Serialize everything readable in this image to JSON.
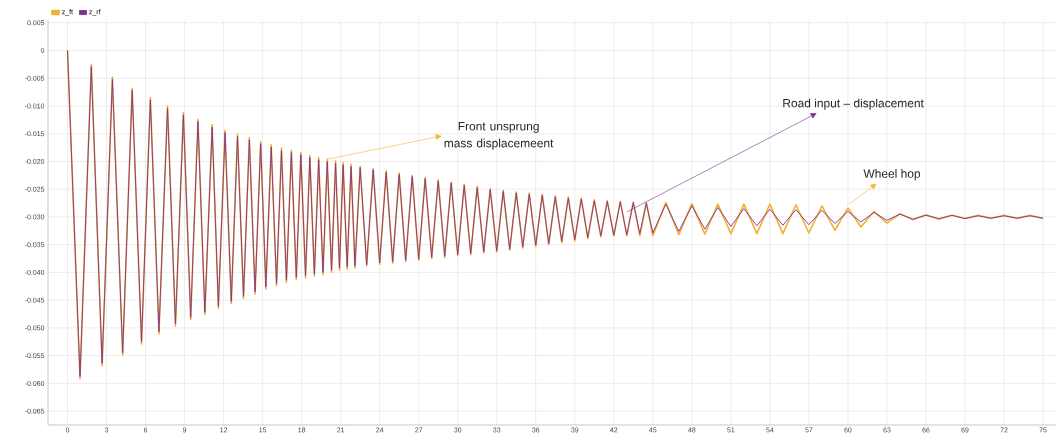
{
  "chart_data": {
    "type": "line",
    "x": [
      0,
      0.96,
      1.83,
      2.66,
      3.45,
      4.24,
      4.97,
      5.69,
      6.37,
      7.03,
      7.69,
      8.3,
      8.91,
      9.47,
      10.03,
      10.56,
      11.12,
      11.6,
      12.11,
      12.59,
      13.07,
      13.53,
      13.98,
      14.42,
      14.85,
      15.25,
      15.66,
      16.07,
      16.45,
      16.83,
      17.21,
      17.59,
      17.94,
      18.3,
      18.63,
      18.98,
      19.31,
      19.64,
      19.97,
      20.3,
      20.61,
      20.91,
      21.19,
      21.5,
      21.8,
      22.1,
      22.5,
      23,
      23.5,
      24,
      24.5,
      25,
      25.5,
      26,
      26.5,
      27,
      27.5,
      28,
      28.5,
      29,
      29.5,
      30,
      30.5,
      31,
      31.5,
      32,
      32.5,
      33,
      33.5,
      34,
      34.5,
      35,
      35.5,
      36,
      36.5,
      37,
      37.5,
      38,
      38.5,
      39,
      39.5,
      40,
      40.5,
      41,
      41.5,
      42,
      42.5,
      43,
      43.5,
      44,
      44.5,
      45,
      46,
      47,
      48,
      49,
      50,
      51,
      52,
      53,
      54,
      55,
      56,
      57,
      58,
      59,
      60,
      61,
      62,
      63,
      64,
      65,
      66,
      67,
      68,
      69,
      70,
      71,
      72,
      73,
      74,
      75
    ],
    "series": [
      {
        "name": "z_ft",
        "color": "#f2b134",
        "values": [
          0,
          -0.0592,
          -0.0025,
          -0.0568,
          -0.0048,
          -0.0549,
          -0.0068,
          -0.0529,
          -0.0085,
          -0.0511,
          -0.01,
          -0.0497,
          -0.0112,
          -0.0485,
          -0.0124,
          -0.0476,
          -0.0134,
          -0.0465,
          -0.0144,
          -0.0456,
          -0.0151,
          -0.0447,
          -0.0157,
          -0.0439,
          -0.0164,
          -0.043,
          -0.017,
          -0.0424,
          -0.0176,
          -0.0418,
          -0.018,
          -0.0413,
          -0.0184,
          -0.041,
          -0.0189,
          -0.0407,
          -0.0193,
          -0.0404,
          -0.0196,
          -0.04,
          -0.0199,
          -0.0396,
          -0.0202,
          -0.0394,
          -0.0205,
          -0.0392,
          -0.0209,
          -0.0388,
          -0.0213,
          -0.0385,
          -0.0217,
          -0.0383,
          -0.0221,
          -0.038,
          -0.0225,
          -0.0378,
          -0.0229,
          -0.0375,
          -0.0233,
          -0.0373,
          -0.0237,
          -0.037,
          -0.0241,
          -0.0368,
          -0.0245,
          -0.0365,
          -0.0249,
          -0.0363,
          -0.0252,
          -0.036,
          -0.0255,
          -0.0356,
          -0.0257,
          -0.0353,
          -0.0259,
          -0.035,
          -0.0262,
          -0.0346,
          -0.0264,
          -0.0343,
          -0.0266,
          -0.0339,
          -0.0269,
          -0.0336,
          -0.0271,
          -0.0334,
          -0.0272,
          -0.0334,
          -0.0273,
          -0.0334,
          -0.0274,
          -0.0334,
          -0.0274,
          -0.0332,
          -0.0276,
          -0.0331,
          -0.0277,
          -0.033,
          -0.0277,
          -0.033,
          -0.0277,
          -0.033,
          -0.0278,
          -0.0329,
          -0.028,
          -0.0324,
          -0.0284,
          -0.0318,
          -0.029,
          -0.0311,
          -0.0294,
          -0.0305,
          -0.0296,
          -0.0304,
          -0.0297,
          -0.0303,
          -0.0297,
          -0.0303,
          -0.0297,
          -0.0303,
          -0.0297,
          -0.0303
        ]
      },
      {
        "name": "z_rf",
        "color": "#7b3294",
        "values": [
          0,
          -0.0588,
          -0.0029,
          -0.0564,
          -0.0052,
          -0.0545,
          -0.0072,
          -0.0525,
          -0.0089,
          -0.0507,
          -0.0104,
          -0.0493,
          -0.0116,
          -0.0481,
          -0.0128,
          -0.0472,
          -0.0138,
          -0.0461,
          -0.0148,
          -0.0452,
          -0.0155,
          -0.0443,
          -0.0161,
          -0.0435,
          -0.0168,
          -0.0426,
          -0.0174,
          -0.042,
          -0.018,
          -0.0414,
          -0.0184,
          -0.0409,
          -0.0188,
          -0.0406,
          -0.0193,
          -0.0403,
          -0.0197,
          -0.04,
          -0.02,
          -0.0396,
          -0.0203,
          -0.0392,
          -0.0206,
          -0.039,
          -0.0209,
          -0.0388,
          -0.0211,
          -0.0386,
          -0.0215,
          -0.0383,
          -0.0219,
          -0.0381,
          -0.0223,
          -0.0378,
          -0.0227,
          -0.0376,
          -0.0231,
          -0.0373,
          -0.0235,
          -0.0371,
          -0.0239,
          -0.0368,
          -0.0243,
          -0.0366,
          -0.0247,
          -0.0363,
          -0.0251,
          -0.0361,
          -0.0254,
          -0.0358,
          -0.0257,
          -0.0354,
          -0.0259,
          -0.0351,
          -0.0261,
          -0.0348,
          -0.0264,
          -0.0344,
          -0.0266,
          -0.0341,
          -0.0268,
          -0.0337,
          -0.0271,
          -0.0334,
          -0.0272,
          -0.0333,
          -0.0273,
          -0.0332,
          -0.0274,
          -0.033,
          -0.0275,
          -0.0329,
          -0.0277,
          -0.0326,
          -0.028,
          -0.0322,
          -0.0283,
          -0.0317,
          -0.0285,
          -0.0316,
          -0.0286,
          -0.0315,
          -0.0287,
          -0.0314,
          -0.0288,
          -0.0312,
          -0.029,
          -0.0309,
          -0.0292,
          -0.0306,
          -0.0295,
          -0.0304,
          -0.0297,
          -0.0303,
          -0.0297,
          -0.0303,
          -0.0298,
          -0.0302,
          -0.0298,
          -0.0302,
          -0.0298,
          -0.0302
        ]
      }
    ],
    "xlim": [
      -1.5,
      76
    ],
    "ylim": [
      -0.0675,
      0.0055
    ],
    "xticks": [
      0,
      3,
      6,
      9,
      12,
      15,
      18,
      21,
      24,
      27,
      30,
      33,
      36,
      39,
      42,
      45,
      48,
      51,
      54,
      57,
      60,
      63,
      66,
      69,
      72,
      75
    ],
    "yticks": [
      {
        "value": 0.005,
        "label": "0.005"
      },
      {
        "value": 0,
        "label": "0"
      },
      {
        "value": -0.005,
        "label": "-0.005"
      },
      {
        "value": -0.01,
        "label": "-0.010"
      },
      {
        "value": -0.015,
        "label": "-0.015"
      },
      {
        "value": -0.02,
        "label": "-0.020"
      },
      {
        "value": -0.025,
        "label": "-0.025"
      },
      {
        "value": -0.03,
        "label": "-0.030"
      },
      {
        "value": -0.035,
        "label": "-0.035"
      },
      {
        "value": -0.04,
        "label": "-0.040"
      },
      {
        "value": -0.045,
        "label": "-0.045"
      },
      {
        "value": -0.05,
        "label": "-0.050"
      },
      {
        "value": -0.055,
        "label": "-0.055"
      },
      {
        "value": -0.06,
        "label": "-0.060"
      },
      {
        "value": -0.065,
        "label": "-0.065"
      }
    ],
    "grid": true,
    "legend": "top left",
    "marker": "none",
    "line_style": "solid",
    "annotations": [
      {
        "text": "Front unsprung mass displacemeent",
        "x": 19.97,
        "y": -0.0196
      },
      {
        "text": "Road input – displacement",
        "x": 43,
        "y": -0.0291
      },
      {
        "text": "Wheel hop",
        "x": 60.1,
        "y": -0.0277
      }
    ]
  }
}
